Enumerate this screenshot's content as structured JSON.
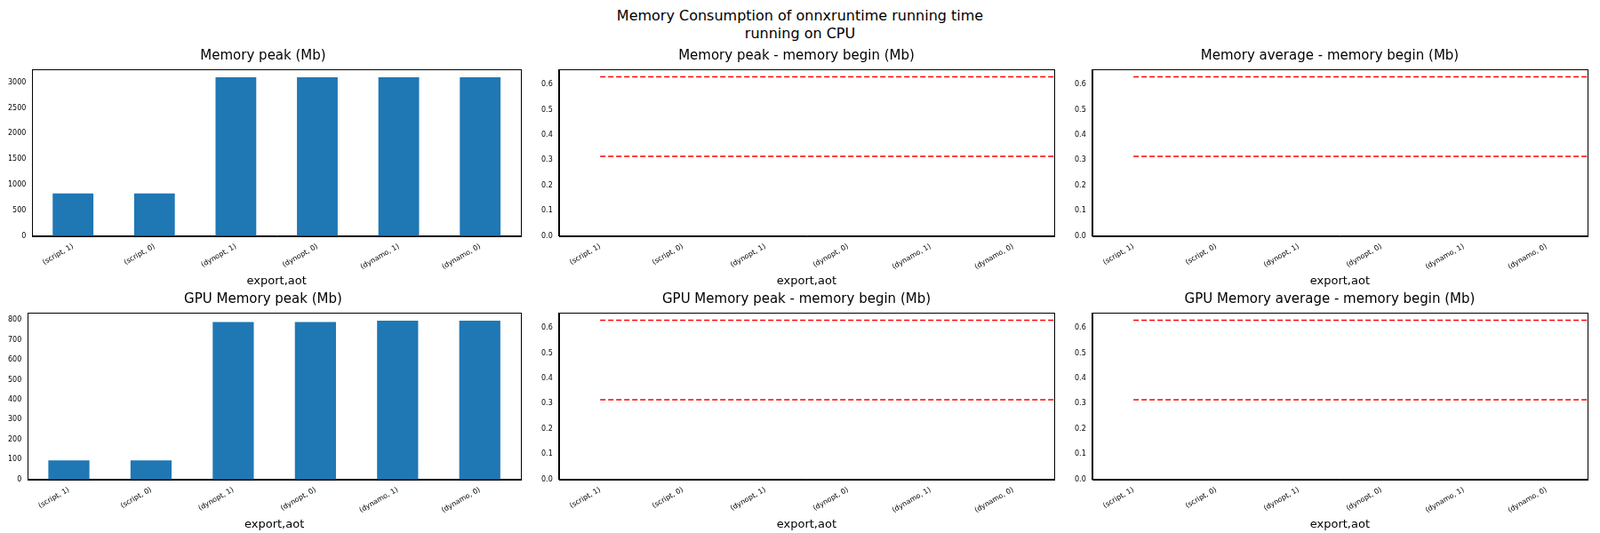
{
  "title": [
    "Memory Consumption of onnxruntime running time",
    "running on CPU"
  ],
  "chart_data": [
    {
      "type": "bar",
      "title": "Memory peak (Mb)",
      "x_label": "export,aot",
      "categories": [
        "(script, 1)",
        "(script, 0)",
        "(dynopt, 1)",
        "(dynopt, 0)",
        "(dynamo, 1)",
        "(dynamo, 0)"
      ],
      "values": [
        830,
        830,
        3100,
        3100,
        3100,
        3100
      ],
      "color": "#1f77b4",
      "ylim": [
        0,
        3255
      ],
      "yticks": [
        0,
        500,
        1000,
        1500,
        2000,
        2500,
        3000
      ]
    },
    {
      "type": "bar",
      "title": "Memory peak - memory begin (Mb)",
      "x_label": "export,aot",
      "categories": [
        "(script, 1)",
        "(script, 0)",
        "(dynopt, 1)",
        "(dynopt, 0)",
        "(dynamo, 1)",
        "(dynamo, 0)"
      ],
      "values": [
        0,
        0,
        0,
        0,
        0,
        0
      ],
      "color": "#1f77b4",
      "ylim": [
        0,
        0.66
      ],
      "yticks": [
        {
          "value": 0,
          "label": "0.0"
        },
        {
          "value": 0.1,
          "label": "0.1"
        },
        {
          "value": 0.2,
          "label": "0.2"
        },
        {
          "value": 0.3,
          "label": "0.3"
        },
        {
          "value": 0.4,
          "label": "0.4"
        },
        {
          "value": 0.5,
          "label": "0.5"
        },
        {
          "value": 0.6,
          "label": "0.6"
        }
      ],
      "hlines": {
        "values": [
          0.315,
          0.63
        ],
        "color": "#ff0000",
        "line_style": "dashed"
      }
    },
    {
      "type": "bar",
      "title": "Memory average - memory begin (Mb)",
      "x_label": "export,aot",
      "categories": [
        "(script, 1)",
        "(script, 0)",
        "(dynopt, 1)",
        "(dynopt, 0)",
        "(dynamo, 1)",
        "(dynamo, 0)"
      ],
      "values": [
        0,
        0,
        0,
        0,
        0,
        0
      ],
      "color": "#1f77b4",
      "ylim": [
        0,
        0.66
      ],
      "yticks": [
        {
          "value": 0,
          "label": "0.0"
        },
        {
          "value": 0.1,
          "label": "0.1"
        },
        {
          "value": 0.2,
          "label": "0.2"
        },
        {
          "value": 0.3,
          "label": "0.3"
        },
        {
          "value": 0.4,
          "label": "0.4"
        },
        {
          "value": 0.5,
          "label": "0.5"
        },
        {
          "value": 0.6,
          "label": "0.6"
        }
      ],
      "hlines": {
        "values": [
          0.315,
          0.63
        ],
        "color": "#ff0000",
        "line_style": "dashed"
      }
    },
    {
      "type": "bar",
      "title": "GPU Memory peak (Mb)",
      "x_label": "export,aot",
      "categories": [
        "(script, 1)",
        "(script, 0)",
        "(dynopt, 1)",
        "(dynopt, 0)",
        "(dynamo, 1)",
        "(dynamo, 0)"
      ],
      "values": [
        95,
        95,
        790,
        790,
        797,
        797
      ],
      "color": "#1f77b4",
      "ylim": [
        0,
        837
      ],
      "yticks": [
        0,
        100,
        200,
        300,
        400,
        500,
        600,
        700,
        800
      ]
    },
    {
      "type": "bar",
      "title": "GPU Memory peak - memory begin (Mb)",
      "x_label": "export,aot",
      "categories": [
        "(script, 1)",
        "(script, 0)",
        "(dynopt, 1)",
        "(dynopt, 0)",
        "(dynamo, 1)",
        "(dynamo, 0)"
      ],
      "values": [
        0,
        0,
        0,
        0,
        0,
        0
      ],
      "color": "#1f77b4",
      "ylim": [
        0,
        0.66
      ],
      "yticks": [
        {
          "value": 0,
          "label": "0.0"
        },
        {
          "value": 0.1,
          "label": "0.1"
        },
        {
          "value": 0.2,
          "label": "0.2"
        },
        {
          "value": 0.3,
          "label": "0.3"
        },
        {
          "value": 0.4,
          "label": "0.4"
        },
        {
          "value": 0.5,
          "label": "0.5"
        },
        {
          "value": 0.6,
          "label": "0.6"
        }
      ],
      "hlines": {
        "values": [
          0.315,
          0.63
        ],
        "color": "#ff0000",
        "line_style": "dashed"
      }
    },
    {
      "type": "bar",
      "title": "GPU Memory average - memory begin (Mb)",
      "x_label": "export,aot",
      "categories": [
        "(script, 1)",
        "(script, 0)",
        "(dynopt, 1)",
        "(dynopt, 0)",
        "(dynamo, 1)",
        "(dynamo, 0)"
      ],
      "values": [
        0,
        0,
        0,
        0,
        0,
        0
      ],
      "color": "#1f77b4",
      "ylim": [
        0,
        0.66
      ],
      "yticks": [
        {
          "value": 0,
          "label": "0.0"
        },
        {
          "value": 0.1,
          "label": "0.1"
        },
        {
          "value": 0.2,
          "label": "0.2"
        },
        {
          "value": 0.3,
          "label": "0.3"
        },
        {
          "value": 0.4,
          "label": "0.4"
        },
        {
          "value": 0.5,
          "label": "0.5"
        },
        {
          "value": 0.6,
          "label": "0.6"
        }
      ],
      "hlines": {
        "values": [
          0.315,
          0.63
        ],
        "color": "#ff0000",
        "line_style": "dashed"
      }
    }
  ]
}
